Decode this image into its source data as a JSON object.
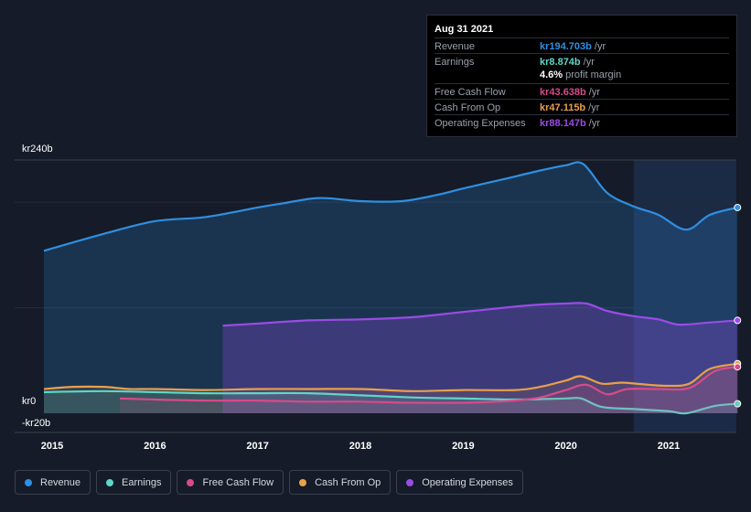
{
  "tooltip": {
    "date": "Aug 31 2021",
    "rows": [
      {
        "label": "Revenue",
        "value": "kr194.703b",
        "unit": "/yr",
        "color": "#2f8fe0"
      },
      {
        "label": "Earnings",
        "value": "kr8.874b",
        "unit": "/yr",
        "color": "#5fd6c8"
      },
      {
        "label": "Free Cash Flow",
        "value": "kr43.638b",
        "unit": "/yr",
        "color": "#d64b8a"
      },
      {
        "label": "Cash From Op",
        "value": "kr47.115b",
        "unit": "/yr",
        "color": "#e8a04a"
      },
      {
        "label": "Operating Expenses",
        "value": "kr88.147b",
        "unit": "/yr",
        "color": "#9b4be6"
      }
    ],
    "profit_margin": "4.6%",
    "profit_margin_label": "profit margin"
  },
  "legend": [
    {
      "label": "Revenue",
      "color": "#2f8fe0"
    },
    {
      "label": "Earnings",
      "color": "#5fd6c8"
    },
    {
      "label": "Free Cash Flow",
      "color": "#d64b8a"
    },
    {
      "label": "Cash From Op",
      "color": "#e8a04a"
    },
    {
      "label": "Operating Expenses",
      "color": "#9b4be6"
    }
  ],
  "chart_data": {
    "type": "area",
    "ylim": [
      -20,
      240
    ],
    "y_ticks": [
      {
        "value": 240,
        "label": "kr240b"
      },
      {
        "value": 0,
        "label": "kr0"
      },
      {
        "value": -20,
        "label": "-kr20b"
      }
    ],
    "x_ticks": [
      {
        "value": 2015,
        "label": "2015"
      },
      {
        "value": 2016,
        "label": "2016"
      },
      {
        "value": 2017,
        "label": "2017"
      },
      {
        "value": 2018,
        "label": "2018"
      },
      {
        "value": 2019,
        "label": "2019"
      },
      {
        "value": 2020,
        "label": "2020"
      },
      {
        "value": 2021,
        "label": "2021"
      }
    ],
    "xlim": [
      2014.6,
      2021.67
    ],
    "highlight_from": 2020.66,
    "series": [
      {
        "name": "Revenue",
        "color": "#2f8fe0",
        "x": [
          2014.92,
          2015.5,
          2016.0,
          2016.5,
          2017.0,
          2017.25,
          2017.6,
          2018.0,
          2018.4,
          2018.75,
          2019.0,
          2019.4,
          2019.75,
          2020.0,
          2020.17,
          2020.4,
          2020.66,
          2020.9,
          2021.17,
          2021.4,
          2021.67
        ],
        "y": [
          154,
          170,
          182,
          186,
          195,
          199,
          204,
          201,
          201,
          207,
          213,
          222,
          230,
          235,
          236,
          209,
          196,
          188,
          174,
          188,
          195
        ]
      },
      {
        "name": "Operating Expenses",
        "color": "#9b4be6",
        "x": [
          2016.66,
          2017.0,
          2017.5,
          2018.0,
          2018.5,
          2019.0,
          2019.5,
          2019.75,
          2020.0,
          2020.2,
          2020.4,
          2020.66,
          2020.9,
          2021.1,
          2021.4,
          2021.67
        ],
        "y": [
          83,
          85,
          88,
          89,
          91,
          96,
          101,
          103,
          104,
          104,
          97,
          92,
          89,
          84,
          86,
          88
        ]
      },
      {
        "name": "Cash From Op",
        "color": "#e8a04a",
        "x": [
          2014.92,
          2015.2,
          2015.5,
          2015.75,
          2016.0,
          2016.5,
          2017.0,
          2017.5,
          2018.0,
          2018.5,
          2019.0,
          2019.5,
          2019.75,
          2020.0,
          2020.15,
          2020.35,
          2020.55,
          2020.8,
          2021.0,
          2021.2,
          2021.4,
          2021.67
        ],
        "y": [
          23,
          25,
          25,
          23,
          23,
          22,
          23,
          23,
          23,
          21,
          22,
          22,
          25,
          31,
          35,
          28,
          29,
          27,
          26,
          28,
          42,
          47
        ]
      },
      {
        "name": "Earnings",
        "color": "#5fd6c8",
        "x": [
          2014.92,
          2015.5,
          2016.0,
          2016.5,
          2017.0,
          2017.5,
          2018.0,
          2018.5,
          2019.0,
          2019.5,
          2020.0,
          2020.15,
          2020.35,
          2020.66,
          2021.0,
          2021.17,
          2021.45,
          2021.67
        ],
        "y": [
          20,
          21,
          20,
          19,
          19,
          19,
          17,
          15,
          14,
          13,
          14,
          14,
          6,
          4,
          2,
          0,
          7,
          9
        ]
      },
      {
        "name": "Free Cash Flow",
        "color": "#d64b8a",
        "x": [
          2015.66,
          2016.0,
          2016.5,
          2017.0,
          2017.5,
          2018.0,
          2018.5,
          2019.0,
          2019.5,
          2019.75,
          2020.0,
          2020.2,
          2020.4,
          2020.6,
          2020.9,
          2021.2,
          2021.45,
          2021.67
        ],
        "y": [
          14,
          13,
          12,
          12,
          11,
          11,
          10,
          10,
          12,
          15,
          22,
          27,
          18,
          23,
          23,
          24,
          40,
          44
        ]
      }
    ]
  }
}
